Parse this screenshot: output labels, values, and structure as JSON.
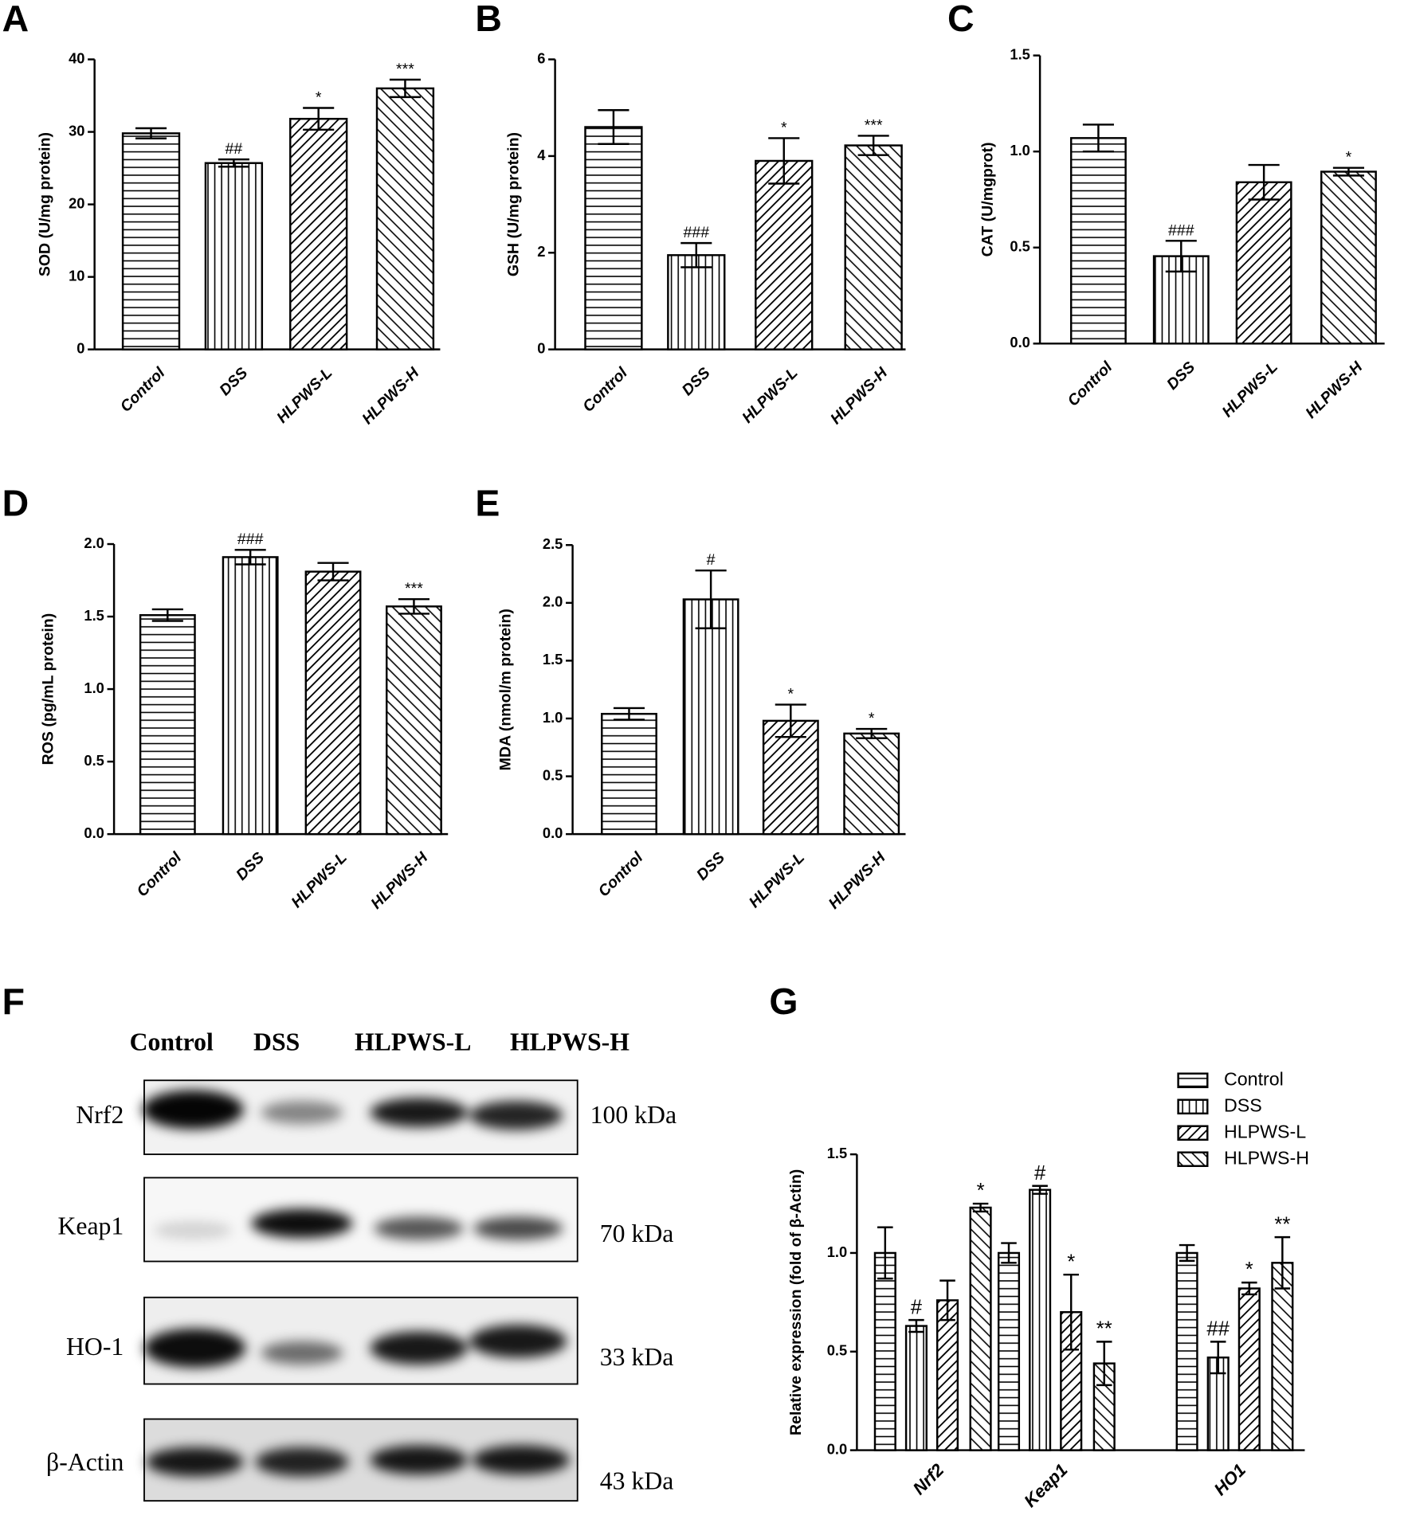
{
  "chart_data": [
    {
      "type": "bar",
      "label": "A",
      "ylabel": "SOD (U/mg protein)",
      "categories": [
        "Control",
        "DSS",
        "HLPWS-L",
        "HLPWS-H"
      ],
      "values": [
        29.8,
        25.7,
        31.8,
        36.0
      ],
      "errors": [
        0.7,
        0.5,
        1.5,
        1.2
      ],
      "annotations": [
        null,
        "##",
        "*",
        "***"
      ],
      "patterns": [
        "horizontal",
        "vertical",
        "diagonal",
        "antidiagonal"
      ],
      "ylim": [
        0,
        40
      ],
      "yticks": [
        0,
        10,
        20,
        30,
        40
      ]
    },
    {
      "type": "bar",
      "label": "B",
      "ylabel": "GSH (U/mg protein)",
      "categories": [
        "Control",
        "DSS",
        "HLPWS-L",
        "HLPWS-H"
      ],
      "values": [
        4.6,
        1.95,
        3.9,
        4.22
      ],
      "errors": [
        0.35,
        0.25,
        0.47,
        0.2
      ],
      "annotations": [
        null,
        "###",
        "*",
        "***"
      ],
      "patterns": [
        "horizontal",
        "vertical",
        "diagonal",
        "antidiagonal"
      ],
      "ylim": [
        0,
        6
      ],
      "yticks": [
        0,
        2,
        4,
        6
      ]
    },
    {
      "type": "bar",
      "label": "C",
      "ylabel": "CAT (U/mgprot)",
      "categories": [
        "Control",
        "DSS",
        "HLPWS-L",
        "HLPWS-H"
      ],
      "values": [
        1.07,
        0.455,
        0.84,
        0.895
      ],
      "errors": [
        0.07,
        0.08,
        0.09,
        0.02
      ],
      "annotations": [
        null,
        "###",
        null,
        "*"
      ],
      "patterns": [
        "horizontal",
        "vertical",
        "diagonal",
        "antidiagonal"
      ],
      "ylim": [
        0,
        1.5
      ],
      "yticks": [
        {
          "value": 0,
          "label": "0.0"
        },
        0.5,
        {
          "value": 1,
          "label": "1.0"
        },
        1.5
      ]
    },
    {
      "type": "bar",
      "label": "D",
      "ylabel": "ROS (pg/mL protein)",
      "categories": [
        "Control",
        "DSS",
        "HLPWS-L",
        "HLPWS-H"
      ],
      "values": [
        1.51,
        1.91,
        1.81,
        1.57
      ],
      "errors": [
        0.04,
        0.05,
        0.06,
        0.05
      ],
      "annotations": [
        null,
        "###",
        null,
        "***"
      ],
      "patterns": [
        "horizontal",
        "vertical",
        "diagonal",
        "antidiagonal"
      ],
      "ylim": [
        0,
        2
      ],
      "yticks": [
        {
          "value": 0,
          "label": "0.0"
        },
        0.5,
        {
          "value": 1,
          "label": "1.0"
        },
        1.5,
        {
          "value": 2,
          "label": "2.0"
        }
      ]
    },
    {
      "type": "bar",
      "label": "E",
      "ylabel": "MDA (nmol/m protein)",
      "categories": [
        "Control",
        "DSS",
        "HLPWS-L",
        "HLPWS-H"
      ],
      "values": [
        1.04,
        2.03,
        0.98,
        0.87
      ],
      "errors": [
        0.05,
        0.25,
        0.14,
        0.04
      ],
      "annotations": [
        null,
        "#",
        "*",
        "*"
      ],
      "patterns": [
        "horizontal",
        "vertical",
        "diagonal",
        "antidiagonal"
      ],
      "ylim": [
        0,
        2.5
      ],
      "yticks": [
        {
          "value": 0,
          "label": "0.0"
        },
        0.5,
        {
          "value": 1,
          "label": "1.0"
        },
        1.5,
        {
          "value": 2,
          "label": "2.0"
        },
        2.5
      ]
    },
    {
      "type": "grouped_bar",
      "label": "G",
      "ylabel": "Relative expression (fold of β-Actin)",
      "categories": [
        "Nrf2",
        "Keap1",
        "HO1"
      ],
      "series": [
        {
          "name": "Control",
          "pattern": "horizontal",
          "values": [
            1.0,
            1.0,
            1.0
          ],
          "errors": [
            0.13,
            0.05,
            0.04
          ],
          "annotations": [
            null,
            null,
            null
          ]
        },
        {
          "name": "DSS",
          "pattern": "vertical",
          "values": [
            0.63,
            1.32,
            0.47
          ],
          "errors": [
            0.03,
            0.02,
            0.08
          ],
          "annotations": [
            "#",
            "#",
            "##"
          ]
        },
        {
          "name": "HLPWS-L",
          "pattern": "diagonal",
          "values": [
            0.76,
            0.7,
            0.82
          ],
          "errors": [
            0.1,
            0.19,
            0.03
          ],
          "annotations": [
            null,
            "*",
            "*"
          ]
        },
        {
          "name": "HLPWS-H",
          "pattern": "antidiagonal",
          "values": [
            1.23,
            0.44,
            0.95
          ],
          "errors": [
            0.02,
            0.11,
            0.13
          ],
          "annotations": [
            "*",
            "**",
            "**"
          ]
        }
      ],
      "ylim": [
        0,
        1.5
      ],
      "yticks": [
        {
          "value": 0,
          "label": "0.0"
        },
        0.5,
        {
          "value": 1,
          "label": "1.0"
        },
        1.5
      ],
      "legend": "upper right"
    }
  ],
  "blot": {
    "label": "F",
    "lanes": [
      "Control",
      "DSS",
      "HLPWS-L",
      "HLPWS-H"
    ],
    "rows": [
      {
        "name": "Nrf2",
        "size": "100 kDa"
      },
      {
        "name": "Keap1",
        "size": "70 kDa"
      },
      {
        "name": "HO-1",
        "size": "33 kDa"
      },
      {
        "name": "β-Actin",
        "size": "43 kDa"
      }
    ]
  }
}
